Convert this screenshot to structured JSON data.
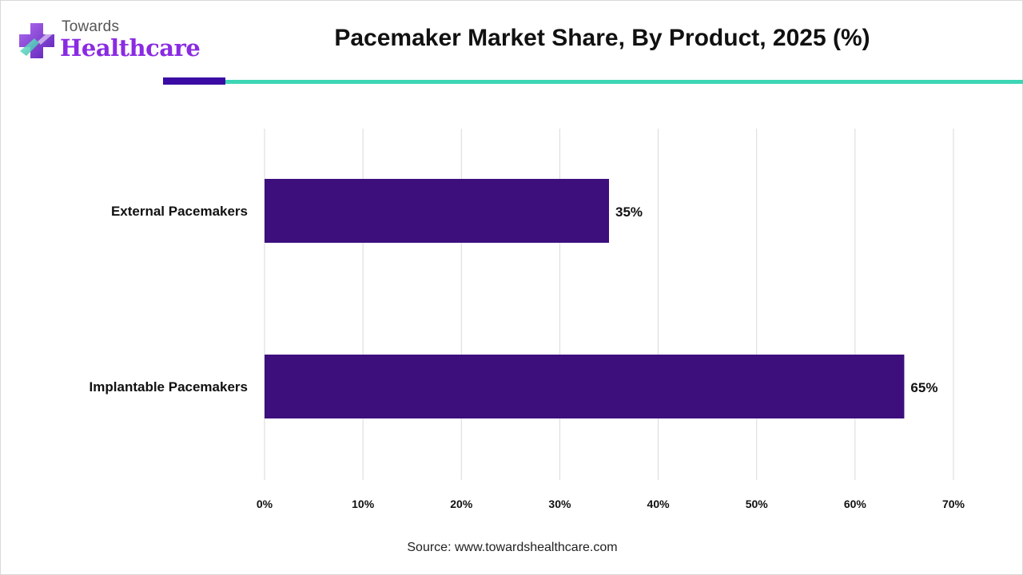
{
  "brand": {
    "top_word": "Towards",
    "bottom_word": "Healthcare",
    "icon": "medical-cross-logo-icon"
  },
  "header": {
    "title": "Pacemaker Market Share, By Product, 2025 (%)"
  },
  "footer": {
    "source": "Source: www.towardshealthcare.com"
  },
  "colors": {
    "bar": "#3d0f7d",
    "accent_dark": "#3a0ca3",
    "accent_teal": "#3dd6b5",
    "brand_purple": "#8a2be2",
    "grid": "#d9d9d9"
  },
  "chart_data": {
    "type": "bar",
    "orientation": "horizontal",
    "title": "Pacemaker Market Share, By Product, 2025 (%)",
    "categories": [
      "External Pacemakers",
      "Implantable Pacemakers"
    ],
    "values": [
      35,
      65
    ],
    "data_labels": [
      "35%",
      "65%"
    ],
    "xlim": [
      0,
      70
    ],
    "xticks": [
      0,
      10,
      20,
      30,
      40,
      50,
      60,
      70
    ],
    "xtick_labels": [
      "0%",
      "10%",
      "20%",
      "30%",
      "40%",
      "50%",
      "60%",
      "70%"
    ],
    "xlabel": "",
    "ylabel": "",
    "grid": "vertical",
    "legend": "none"
  }
}
